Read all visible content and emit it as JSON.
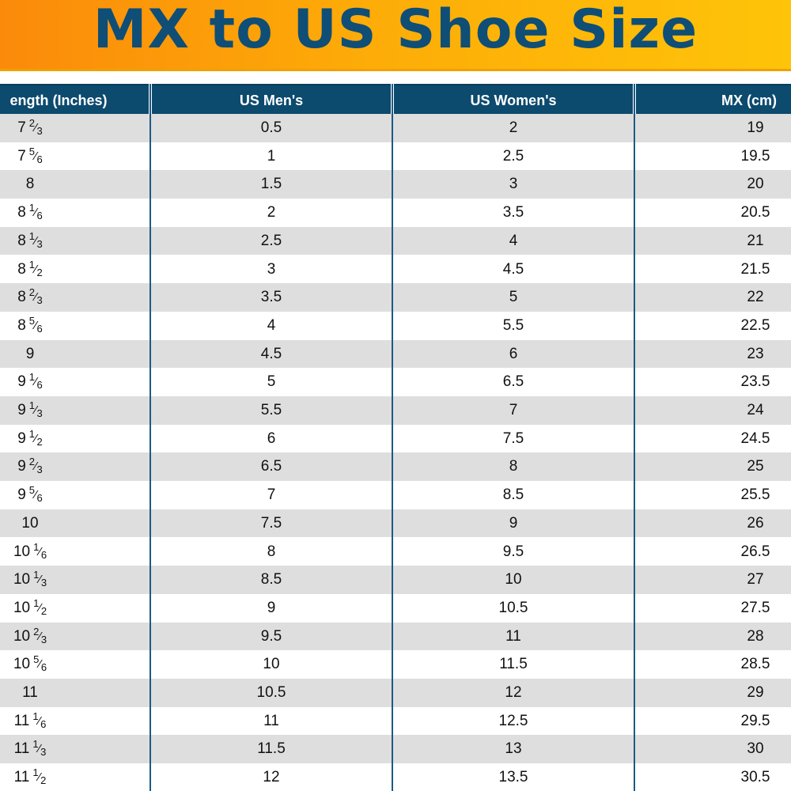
{
  "header": {
    "title": "MX to US Shoe Size"
  },
  "chart_data": {
    "type": "table",
    "title": "MX to US Shoe Size",
    "columns": [
      "ength (Inches)",
      "US Men's",
      "US Women's",
      "MX (cm)"
    ],
    "rows": [
      {
        "inch_whole": "7",
        "inch_num": "2",
        "inch_den": "3",
        "us_men": "0.5",
        "us_women": "2",
        "mx_cm": "19"
      },
      {
        "inch_whole": "7",
        "inch_num": "5",
        "inch_den": "6",
        "us_men": "1",
        "us_women": "2.5",
        "mx_cm": "19.5"
      },
      {
        "inch_whole": "8",
        "inch_num": "",
        "inch_den": "",
        "us_men": "1.5",
        "us_women": "3",
        "mx_cm": "20"
      },
      {
        "inch_whole": "8",
        "inch_num": "1",
        "inch_den": "6",
        "us_men": "2",
        "us_women": "3.5",
        "mx_cm": "20.5"
      },
      {
        "inch_whole": "8",
        "inch_num": "1",
        "inch_den": "3",
        "us_men": "2.5",
        "us_women": "4",
        "mx_cm": "21"
      },
      {
        "inch_whole": "8",
        "inch_num": "1",
        "inch_den": "2",
        "us_men": "3",
        "us_women": "4.5",
        "mx_cm": "21.5"
      },
      {
        "inch_whole": "8",
        "inch_num": "2",
        "inch_den": "3",
        "us_men": "3.5",
        "us_women": "5",
        "mx_cm": "22"
      },
      {
        "inch_whole": "8",
        "inch_num": "5",
        "inch_den": "6",
        "us_men": "4",
        "us_women": "5.5",
        "mx_cm": "22.5"
      },
      {
        "inch_whole": "9",
        "inch_num": "",
        "inch_den": "",
        "us_men": "4.5",
        "us_women": "6",
        "mx_cm": "23"
      },
      {
        "inch_whole": "9",
        "inch_num": "1",
        "inch_den": "6",
        "us_men": "5",
        "us_women": "6.5",
        "mx_cm": "23.5"
      },
      {
        "inch_whole": "9",
        "inch_num": "1",
        "inch_den": "3",
        "us_men": "5.5",
        "us_women": "7",
        "mx_cm": "24"
      },
      {
        "inch_whole": "9",
        "inch_num": "1",
        "inch_den": "2",
        "us_men": "6",
        "us_women": "7.5",
        "mx_cm": "24.5"
      },
      {
        "inch_whole": "9",
        "inch_num": "2",
        "inch_den": "3",
        "us_men": "6.5",
        "us_women": "8",
        "mx_cm": "25"
      },
      {
        "inch_whole": "9",
        "inch_num": "5",
        "inch_den": "6",
        "us_men": "7",
        "us_women": "8.5",
        "mx_cm": "25.5"
      },
      {
        "inch_whole": "10",
        "inch_num": "",
        "inch_den": "",
        "us_men": "7.5",
        "us_women": "9",
        "mx_cm": "26"
      },
      {
        "inch_whole": "10",
        "inch_num": "1",
        "inch_den": "6",
        "us_men": "8",
        "us_women": "9.5",
        "mx_cm": "26.5"
      },
      {
        "inch_whole": "10",
        "inch_num": "1",
        "inch_den": "3",
        "us_men": "8.5",
        "us_women": "10",
        "mx_cm": "27"
      },
      {
        "inch_whole": "10",
        "inch_num": "1",
        "inch_den": "2",
        "us_men": "9",
        "us_women": "10.5",
        "mx_cm": "27.5"
      },
      {
        "inch_whole": "10",
        "inch_num": "2",
        "inch_den": "3",
        "us_men": "9.5",
        "us_women": "11",
        "mx_cm": "28"
      },
      {
        "inch_whole": "10",
        "inch_num": "5",
        "inch_den": "6",
        "us_men": "10",
        "us_women": "11.5",
        "mx_cm": "28.5"
      },
      {
        "inch_whole": "11",
        "inch_num": "",
        "inch_den": "",
        "us_men": "10.5",
        "us_women": "12",
        "mx_cm": "29"
      },
      {
        "inch_whole": "11",
        "inch_num": "1",
        "inch_den": "6",
        "us_men": "11",
        "us_women": "12.5",
        "mx_cm": "29.5"
      },
      {
        "inch_whole": "11",
        "inch_num": "1",
        "inch_den": "3",
        "us_men": "11.5",
        "us_women": "13",
        "mx_cm": "30"
      },
      {
        "inch_whole": "11",
        "inch_num": "1",
        "inch_den": "2",
        "us_men": "12",
        "us_women": "13.5",
        "mx_cm": "30.5"
      }
    ]
  },
  "colors": {
    "banner_start": "#fb8a0a",
    "banner_end": "#fec409",
    "title": "#0f4e76",
    "header_bg": "#0c4a6e",
    "header_text": "#ffffff",
    "row_shade": "#dedede",
    "row_plain": "#ffffff",
    "divider": "#1b5a86"
  }
}
